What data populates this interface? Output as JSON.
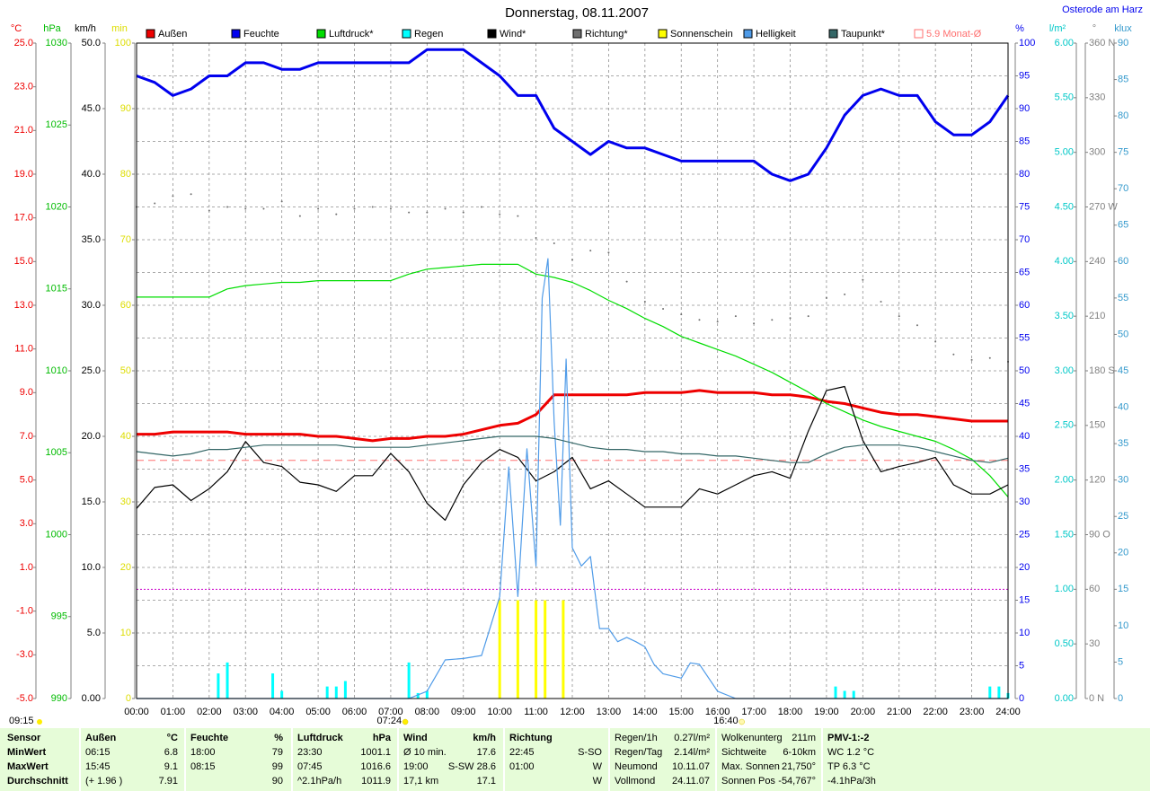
{
  "chart_data": {
    "type": "line",
    "title": "Donnerstag, 08.11.2007",
    "location": "Osterode am Harz",
    "xlim": [
      0,
      24
    ],
    "xticks": [
      {
        "value": 0,
        "label": "00:00"
      },
      {
        "value": 1,
        "label": "01:00"
      },
      {
        "value": 2,
        "label": "02:00"
      },
      {
        "value": 3,
        "label": "03:00"
      },
      {
        "value": 4,
        "label": "04:00"
      },
      {
        "value": 5,
        "label": "05:00"
      },
      {
        "value": 6,
        "label": "06:00"
      },
      {
        "value": 7,
        "label": "07:00"
      },
      {
        "value": 8,
        "label": "08:00"
      },
      {
        "value": 9,
        "label": "09:00"
      },
      {
        "value": 10,
        "label": "10:00"
      },
      {
        "value": 11,
        "label": "11:00"
      },
      {
        "value": 12,
        "label": "12:00"
      },
      {
        "value": 13,
        "label": "13:00"
      },
      {
        "value": 14,
        "label": "14:00"
      },
      {
        "value": 15,
        "label": "15:00"
      },
      {
        "value": 16,
        "label": "16:00"
      },
      {
        "value": 17,
        "label": "17:00"
      },
      {
        "value": 18,
        "label": "18:00"
      },
      {
        "value": 19,
        "label": "19:00"
      },
      {
        "value": 20,
        "label": "20:00"
      },
      {
        "value": 21,
        "label": "21:00"
      },
      {
        "value": 22,
        "label": "22:00"
      },
      {
        "value": 23,
        "label": "23:00"
      },
      {
        "value": 24,
        "label": "24:00"
      }
    ],
    "x": [
      0,
      0.5,
      1,
      1.5,
      2,
      2.5,
      3,
      3.5,
      4,
      4.5,
      5,
      5.5,
      6,
      6.5,
      7,
      7.5,
      8,
      8.5,
      9,
      9.5,
      10,
      10.5,
      11,
      11.5,
      12,
      12.5,
      13,
      13.5,
      14,
      14.5,
      15,
      15.5,
      16,
      16.5,
      17,
      17.5,
      18,
      18.5,
      19,
      19.5,
      20,
      20.5,
      21,
      21.5,
      22,
      22.5,
      23,
      23.5,
      24
    ],
    "axes": [
      {
        "label": "°C",
        "color": "#ee0000",
        "lim": [
          -5,
          25
        ],
        "ticks": [
          {
            "value": 25,
            "label": "25.0"
          },
          {
            "value": 23,
            "label": "23.0"
          },
          {
            "value": 21,
            "label": "21.0"
          },
          {
            "value": 19,
            "label": "19.0"
          },
          {
            "value": 17,
            "label": "17.0"
          },
          {
            "value": 15,
            "label": "15.0"
          },
          {
            "value": 13,
            "label": "13.0"
          },
          {
            "value": 11,
            "label": "11.0"
          },
          {
            "value": 9,
            "label": "9.0"
          },
          {
            "value": 7,
            "label": "7.0"
          },
          {
            "value": 5,
            "label": "5.0"
          },
          {
            "value": 3,
            "label": "3.0"
          },
          {
            "value": 1,
            "label": "1.0"
          },
          {
            "value": -1,
            "label": "-1.0"
          },
          {
            "value": -3,
            "label": "-3.0"
          },
          {
            "value": -5,
            "label": "-5.0"
          }
        ]
      },
      {
        "label": "hPa",
        "color": "#00bb00",
        "lim": [
          990,
          1030
        ],
        "ticks": [
          1030,
          1025,
          1020,
          1015,
          1010,
          1005,
          1000,
          995,
          990
        ]
      },
      {
        "label": "km/h",
        "color": "#000000",
        "lim": [
          0,
          50
        ],
        "ticks": [
          {
            "value": 50,
            "label": "50.0"
          },
          {
            "value": 45,
            "label": "45.0"
          },
          {
            "value": 40,
            "label": "40.0"
          },
          {
            "value": 35,
            "label": "35.0"
          },
          {
            "value": 30,
            "label": "30.0"
          },
          {
            "value": 25,
            "label": "25.0"
          },
          {
            "value": 20,
            "label": "20.0"
          },
          {
            "value": 15,
            "label": "15.0"
          },
          {
            "value": 10,
            "label": "10.0"
          },
          {
            "value": 5,
            "label": "5.0"
          },
          {
            "value": 0,
            "label": "0.00"
          }
        ]
      },
      {
        "label": "min",
        "color": "#dddd00",
        "lim": [
          0,
          100
        ],
        "ticks": [
          100,
          90,
          80,
          70,
          60,
          50,
          40,
          30,
          20,
          10,
          0
        ]
      },
      {
        "label": "%",
        "color": "#0000ee",
        "lim": [
          0,
          100
        ],
        "grid": true,
        "ticks": [
          100,
          95,
          90,
          85,
          80,
          75,
          70,
          65,
          60,
          55,
          50,
          45,
          40,
          35,
          30,
          25,
          20,
          15,
          10,
          5,
          0
        ]
      },
      {
        "label": "l/m²",
        "color": "#00c8c8",
        "lim": [
          0,
          6
        ],
        "ticks": [
          {
            "value": 6,
            "label": "6.00"
          },
          {
            "value": 5.5,
            "label": "5.50"
          },
          {
            "value": 5,
            "label": "5.00"
          },
          {
            "value": 4.5,
            "label": "4.50"
          },
          {
            "value": 4,
            "label": "4.00"
          },
          {
            "value": 3.5,
            "label": "3.50"
          },
          {
            "value": 3,
            "label": "3.00"
          },
          {
            "value": 2.5,
            "label": "2.50"
          },
          {
            "value": 2,
            "label": "2.00"
          },
          {
            "value": 1.5,
            "label": "1.50"
          },
          {
            "value": 1,
            "label": "1.00"
          },
          {
            "value": 0.5,
            "label": "0.50"
          },
          {
            "value": 0,
            "label": "0.00"
          }
        ]
      },
      {
        "label": "°",
        "color": "#808080",
        "lim": [
          0,
          360
        ],
        "ticks": [
          {
            "value": 360,
            "label": "360 N"
          },
          330,
          300,
          {
            "value": 270,
            "label": "270 W"
          },
          240,
          210,
          {
            "value": 180,
            "label": "180 S"
          },
          150,
          120,
          {
            "value": 90,
            "label": "90 O"
          },
          60,
          30,
          {
            "value": 0,
            "label": "0 N"
          }
        ]
      },
      {
        "label": "klux",
        "color": "#3399cc",
        "lim": [
          0,
          90
        ],
        "ticks": [
          90,
          85,
          80,
          75,
          70,
          65,
          60,
          55,
          50,
          45,
          40,
          35,
          30,
          25,
          20,
          15,
          10,
          5,
          0
        ]
      }
    ],
    "series": [
      {
        "name": "Außen",
        "type": "line",
        "thick": true,
        "axis": 0,
        "color": "#ee0000",
        "values": [
          7.1,
          7.1,
          7.2,
          7.2,
          7.2,
          7.2,
          7.1,
          7.1,
          7.1,
          7.1,
          7.0,
          7.0,
          6.9,
          6.8,
          6.9,
          6.9,
          7.0,
          7.0,
          7.1,
          7.3,
          7.5,
          7.6,
          8.0,
          8.9,
          8.9,
          8.9,
          8.9,
          8.9,
          9.0,
          9.0,
          9.0,
          9.1,
          9.0,
          9.0,
          9.0,
          8.9,
          8.9,
          8.8,
          8.6,
          8.5,
          8.3,
          8.1,
          8.0,
          8.0,
          7.9,
          7.8,
          7.7,
          7.7,
          7.7
        ]
      },
      {
        "name": "Feuchte",
        "type": "line",
        "thick": true,
        "axis": 4,
        "color": "#0000ee",
        "values": [
          95,
          94,
          92,
          93,
          95,
          95,
          97,
          97,
          96,
          96,
          97,
          97,
          97,
          97,
          97,
          97,
          99,
          99,
          99,
          97,
          95,
          92,
          92,
          87,
          85,
          83,
          85,
          84,
          84,
          83,
          82,
          82,
          82,
          82,
          82,
          80,
          79,
          80,
          84,
          89,
          92,
          93,
          92,
          92,
          88,
          86,
          86,
          88,
          92
        ]
      },
      {
        "name": "Luftdruck*",
        "type": "line",
        "axis": 1,
        "color": "#00dd00",
        "values": [
          1014.5,
          1014.5,
          1014.5,
          1014.5,
          1014.5,
          1015.0,
          1015.2,
          1015.3,
          1015.4,
          1015.4,
          1015.5,
          1015.5,
          1015.5,
          1015.5,
          1015.5,
          1015.9,
          1016.2,
          1016.3,
          1016.4,
          1016.5,
          1016.5,
          1016.5,
          1015.9,
          1015.7,
          1015.4,
          1014.9,
          1014.3,
          1013.8,
          1013.2,
          1012.7,
          1012.1,
          1011.7,
          1011.3,
          1010.9,
          1010.4,
          1009.9,
          1009.3,
          1008.7,
          1008.0,
          1007.5,
          1007.0,
          1006.6,
          1006.3,
          1006.0,
          1005.7,
          1005.2,
          1004.6,
          1003.6,
          1002.3
        ]
      },
      {
        "name": "Regen",
        "type": "bar",
        "axis": 5,
        "color": "#00ffff",
        "x": [
          2.25,
          2.5,
          3.75,
          4,
          5.25,
          5.5,
          5.75,
          7.5,
          7.75,
          8,
          19.25,
          19.5,
          19.75,
          23.5,
          23.75,
          24
        ],
        "values": [
          0.23,
          0.33,
          0.23,
          0.07,
          0.11,
          0.11,
          0.16,
          0.33,
          0.05,
          0.07,
          0.11,
          0.07,
          0.07,
          0.11,
          0.11,
          0.05
        ]
      },
      {
        "name": "Wind*",
        "type": "line",
        "axis": 2,
        "color": "#000000",
        "values": [
          14.5,
          16.1,
          16.3,
          15.1,
          16.0,
          17.3,
          19.6,
          18.0,
          17.7,
          16.5,
          16.3,
          15.8,
          17.0,
          17.0,
          18.7,
          17.3,
          14.9,
          13.6,
          16.3,
          18.0,
          19.0,
          18.4,
          16.6,
          17.3,
          18.4,
          16.0,
          16.6,
          15.6,
          14.6,
          14.6,
          14.6,
          16.0,
          15.6,
          16.3,
          17.0,
          17.3,
          16.8,
          20.4,
          23.5,
          23.8,
          19.7,
          17.3,
          17.7,
          18.0,
          18.4,
          16.3,
          15.6,
          15.6,
          16.3
        ]
      },
      {
        "name": "Richtung*",
        "type": "dots",
        "axis": 6,
        "color": "#707070",
        "values": [
          270,
          272,
          276,
          277,
          268,
          270,
          269,
          269,
          273,
          265,
          269,
          266,
          269,
          270,
          269,
          267,
          267,
          269,
          267,
          270,
          266,
          265,
          253,
          250,
          241,
          246,
          245,
          229,
          218,
          214,
          211,
          208,
          207,
          210,
          206,
          208,
          209,
          210,
          220,
          222,
          230,
          218,
          210,
          205,
          196,
          189,
          186,
          187,
          185
        ]
      },
      {
        "name": "Sonnenschein",
        "type": "bar",
        "axis": 3,
        "color": "#ffff00",
        "x": [
          10,
          10.5,
          11,
          11.25,
          11.75
        ],
        "values": [
          15,
          15,
          15,
          15,
          15
        ]
      },
      {
        "name": "Helligkeit",
        "type": "line",
        "axis": 7,
        "color": "#4f9be8",
        "x": [
          0,
          7.5,
          8,
          8.5,
          9,
          9.5,
          10,
          10.25,
          10.5,
          10.75,
          11,
          11.17,
          11.33,
          11.5,
          11.67,
          11.83,
          12,
          12.25,
          12.5,
          12.75,
          13,
          13.25,
          13.5,
          13.75,
          14,
          14.25,
          14.5,
          15,
          15.25,
          15.5,
          16,
          16.5,
          17,
          24
        ],
        "values": [
          0,
          0,
          1,
          5.3,
          5.5,
          5.9,
          14,
          31.8,
          14,
          34.3,
          18.2,
          55,
          60.4,
          38,
          23.8,
          46.6,
          20.7,
          18.2,
          19.5,
          9.6,
          9.6,
          7.8,
          8.4,
          7.8,
          7.1,
          4.7,
          3.4,
          2.8,
          4.9,
          4.7,
          1,
          0,
          0,
          0
        ]
      },
      {
        "name": "Taupunkt*",
        "type": "line",
        "axis": 0,
        "color": "#336666",
        "values": [
          6.3,
          6.2,
          6.1,
          6.2,
          6.4,
          6.4,
          6.5,
          6.6,
          6.6,
          6.6,
          6.6,
          6.6,
          6.5,
          6.5,
          6.5,
          6.5,
          6.6,
          6.7,
          6.8,
          6.9,
          7.0,
          7.0,
          7.0,
          6.9,
          6.7,
          6.5,
          6.4,
          6.4,
          6.3,
          6.3,
          6.2,
          6.2,
          6.1,
          6.1,
          6.0,
          5.9,
          5.8,
          5.8,
          6.2,
          6.5,
          6.6,
          6.6,
          6.6,
          6.5,
          6.3,
          6.1,
          5.9,
          5.8,
          6.0
        ]
      }
    ],
    "references": [
      {
        "name": "5.9 Monat-Ø",
        "value": 5.9,
        "axis": 0,
        "color": "#ff7070"
      },
      {
        "value": 1.0,
        "axis": 5,
        "color": "#cc00cc"
      }
    ],
    "day_length": "09:15",
    "sunrise": {
      "label": "07:24",
      "x": 7.4
    },
    "sunset": {
      "label": "16:40",
      "x": 16.667
    }
  },
  "stats": {
    "groups": [
      {
        "header": [
          "Sensor"
        ],
        "rows": [
          [
            "MinWert"
          ],
          [
            "MaxWert"
          ],
          [
            "Durchschnitt"
          ]
        ]
      },
      {
        "header": [
          "Außen",
          "°C"
        ],
        "rows": [
          [
            "06:15",
            "6.8"
          ],
          [
            "15:45",
            "9.1"
          ],
          [
            "(+ 1.96 )",
            "7.91"
          ]
        ]
      },
      {
        "header": [
          "Feuchte",
          "%"
        ],
        "rows": [
          [
            "18:00",
            "79"
          ],
          [
            "08:15",
            "99"
          ],
          [
            "90"
          ]
        ]
      },
      {
        "header": [
          "Luftdruck",
          "hPa"
        ],
        "rows": [
          [
            "23:30",
            "1001.1"
          ],
          [
            "07:45",
            "1016.6"
          ],
          [
            "^2.1hPa/h",
            "1011.9"
          ]
        ]
      },
      {
        "header": [
          "Wind",
          "km/h"
        ],
        "rows": [
          [
            "Ø 10 min.",
            "17.6"
          ],
          [
            "19:00",
            "S-SW 28.6"
          ],
          [
            "17,1 km",
            "17.1"
          ]
        ]
      },
      {
        "header": [
          "Richtung"
        ],
        "rows": [
          [
            "22:45",
            "S-SO"
          ],
          [
            "01:00",
            "W"
          ],
          [
            "W"
          ]
        ]
      },
      {
        "rows": [
          [
            "Regen/1h",
            "0.27l/m²"
          ],
          [
            "Regen/Tag",
            "2.14l/m²"
          ],
          [
            "Neumond",
            "10.11.07"
          ],
          [
            "Vollmond",
            "24.11.07"
          ]
        ]
      },
      {
        "rows": [
          [
            "Wolkenunterg",
            "211m"
          ],
          [
            "Sichtweite",
            "6-10km"
          ],
          [
            "Max. Sonnen",
            "21,750°"
          ],
          [
            "Sonnen Pos",
            "-54,767°"
          ]
        ]
      },
      {
        "header": [
          "PMV-1:-2"
        ],
        "rows": [
          [
            "WC 1.2 °C"
          ],
          [
            "TP 6.3 °C"
          ],
          [
            "-4.1hPa/3h"
          ]
        ]
      }
    ]
  }
}
